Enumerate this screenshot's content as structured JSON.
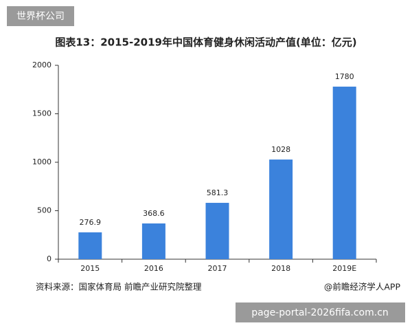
{
  "header_badge": "世界杯公司",
  "footer_url": "page-portal-2026fifa.com.cn",
  "chart_data": {
    "type": "bar",
    "title": "图表13：2015-2019年中国体育健身休闲活动产值(单位：亿元)",
    "categories": [
      "2015",
      "2016",
      "2017",
      "2018",
      "2019E"
    ],
    "values": [
      276.9,
      368.6,
      581.3,
      1028,
      1780
    ],
    "color": "#3b82dc",
    "ylim": [
      0,
      2000
    ],
    "yticks": [
      0,
      500,
      1000,
      1500,
      2000
    ],
    "grid": false,
    "source": "资料来源：国家体育局 前瞻产业研究院整理",
    "credit": "@前瞻经济学人APP"
  }
}
